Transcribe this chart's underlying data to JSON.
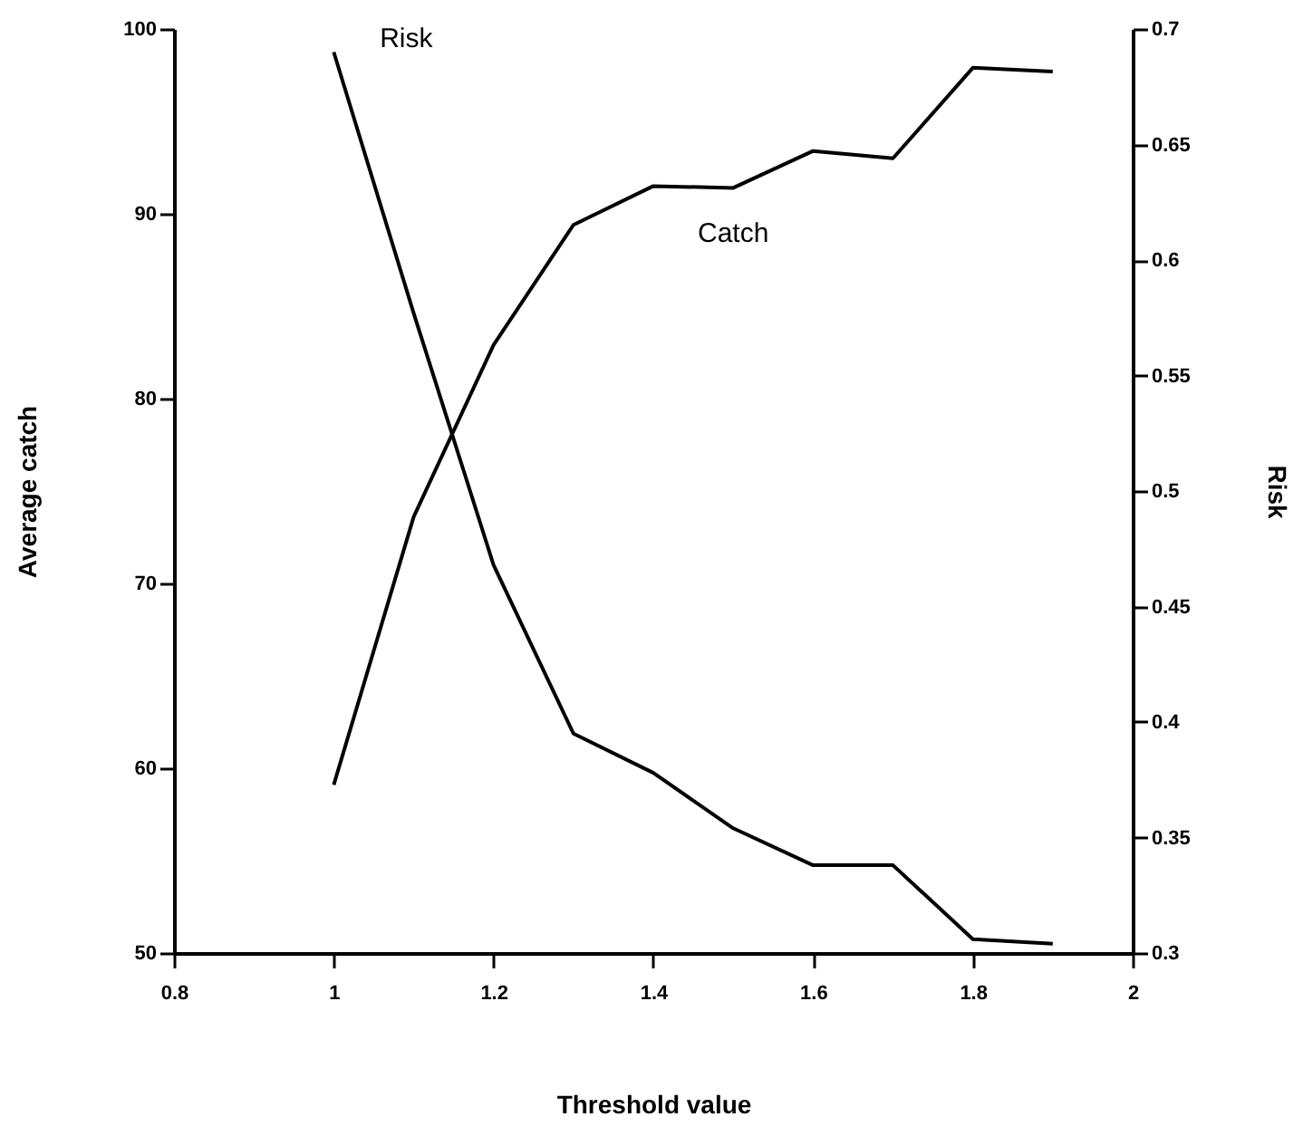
{
  "chart_data": {
    "type": "line",
    "xlabel": "Threshold value",
    "ylabel": "Average catch",
    "y2label": "Risk",
    "x": [
      1,
      1.1,
      1.2,
      1.3,
      1.4,
      1.5,
      1.6,
      1.7,
      1.8,
      1.9
    ],
    "series": [
      {
        "name": "Catch",
        "color": "#000000",
        "values": [
          59.1,
          73.6,
          82.9,
          89.4,
          91.5,
          91.4,
          93.4,
          93.0,
          97.9,
          97.7
        ]
      },
      {
        "name": "Risk",
        "color": "#000000",
        "axis": "y2",
        "values": [
          0.69,
          0.577,
          0.468,
          0.395,
          0.378,
          0.354,
          0.338,
          0.338,
          0.306,
          0.304
        ]
      }
    ],
    "xlim": [
      0.8,
      2
    ],
    "xticks": [
      0.8,
      1,
      1.2,
      1.4,
      1.6,
      1.8,
      2
    ],
    "ylim": [
      50,
      100
    ],
    "yticks": [
      50,
      60,
      70,
      80,
      90,
      100
    ],
    "y2lim": [
      0.3,
      0.7
    ],
    "y2ticks": [
      0.3,
      0.35,
      0.4,
      0.45,
      0.5,
      0.55,
      0.6,
      0.65,
      0.7
    ],
    "grid": false,
    "marker": "none",
    "line_style": "solid"
  }
}
